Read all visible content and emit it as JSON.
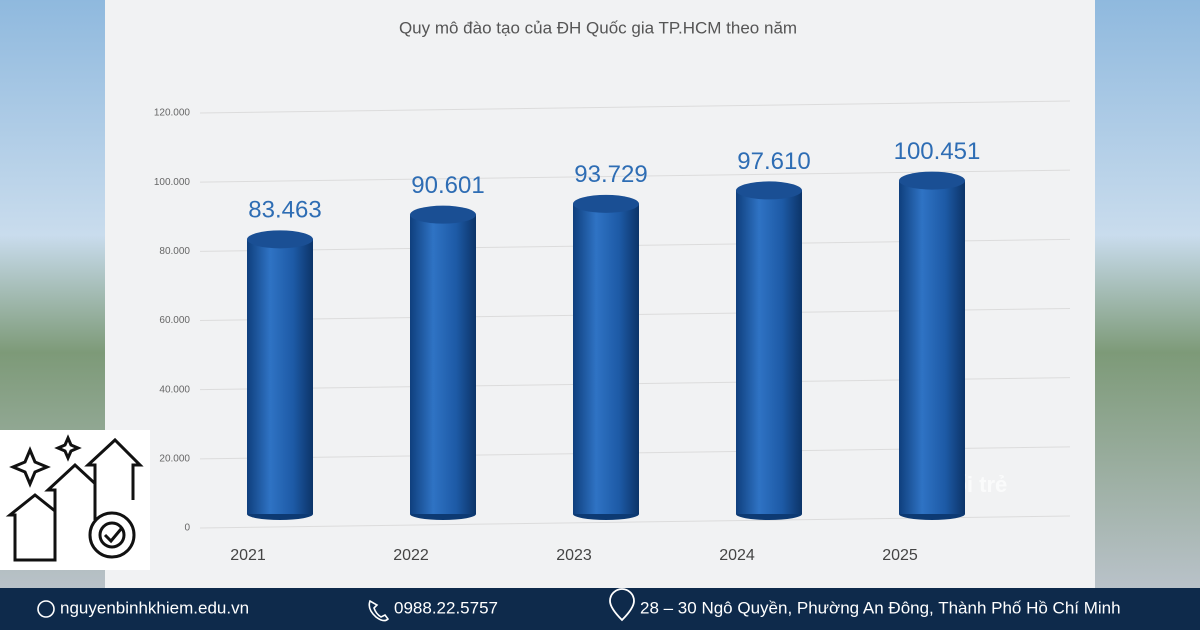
{
  "chart_data": {
    "type": "bar",
    "title": "Quy mô đào tạo của ĐH Quốc gia TP.HCM theo năm",
    "categories": [
      "2021",
      "2022",
      "2023",
      "2024",
      "2025"
    ],
    "values": [
      83463,
      90601,
      93729,
      97610,
      100451
    ],
    "value_labels": [
      "83.463",
      "90.601",
      "93.729",
      "97.610",
      "100.451"
    ],
    "color": "#1f5fae",
    "ylim": [
      0,
      120000
    ],
    "yticks": [
      0,
      {
        "value": 20000,
        "label": "20.000"
      },
      {
        "value": 40000,
        "label": "40.000"
      },
      {
        "value": 60000,
        "label": "60.000"
      },
      {
        "value": 80000,
        "label": "80.000"
      },
      {
        "value": 100000,
        "label": "100.000"
      },
      {
        "value": 120000,
        "label": "120.000"
      }
    ],
    "grid": true,
    "watermark": "tuổi trẻ"
  },
  "footer": {
    "website": "nguyenbinhkhiem.edu.vn",
    "phone": "0988.22.5757",
    "address": "28 – 30 Ngô Quyền, Phường An Đông, Thành Phố Hồ Chí Minh"
  }
}
